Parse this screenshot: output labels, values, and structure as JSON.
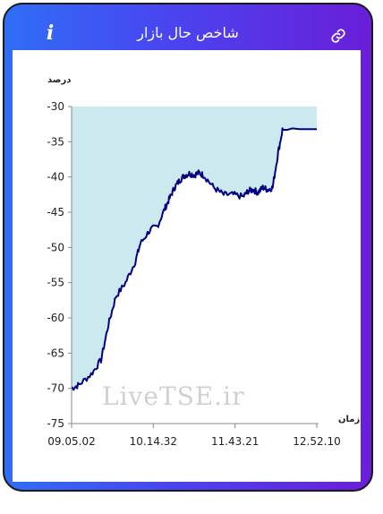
{
  "header": {
    "title": "شاخص حال بازار",
    "info_icon": "info-icon",
    "link_icon": "link-icon"
  },
  "colors": {
    "gradient_start": "#2f6ef6",
    "gradient_end": "#6a1ed8",
    "area_fill": "#cde9f0",
    "line": "#000080"
  },
  "watermark": "LiveTSE.ir",
  "chart_data": {
    "type": "area",
    "ylabel": "درصد",
    "xlabel": "زمان",
    "ylim": [
      -75,
      -30
    ],
    "yticks": [
      -30,
      -35,
      -40,
      -45,
      -50,
      -55,
      -60,
      -65,
      -70,
      -75
    ],
    "xticks": [
      "09.05.02",
      "10.14.32",
      "11.43.21",
      "12.52.10"
    ],
    "grid": false,
    "series": [
      {
        "x": [
          0,
          0.03,
          0.08,
          0.12,
          0.15,
          0.18,
          0.22,
          0.26,
          0.28,
          0.32,
          0.35,
          0.38,
          0.4,
          0.42,
          0.44,
          0.46,
          0.48,
          0.5,
          0.52,
          0.54,
          0.58,
          0.62,
          0.66,
          0.7,
          0.72,
          0.74,
          0.76,
          0.78,
          0.8,
          0.82,
          0.84,
          0.86,
          0.88,
          0.9,
          0.93,
          0.96,
          1.0
        ],
        "values": [
          -70,
          -69.5,
          -68.0,
          -66.0,
          -61.0,
          -57.0,
          -55.0,
          -52.0,
          -49.5,
          -47.5,
          -47.0,
          -44.5,
          -43.0,
          -41.5,
          -40.5,
          -39.8,
          -39.5,
          -39.7,
          -39.4,
          -39.8,
          -41.5,
          -42.5,
          -42.5,
          -42.8,
          -42.0,
          -41.8,
          -42.2,
          -41.5,
          -41.8,
          -41.5,
          -37.0,
          -33.3,
          -33.3,
          -33.1,
          -33.2,
          -33.2,
          -33.2
        ]
      }
    ]
  }
}
